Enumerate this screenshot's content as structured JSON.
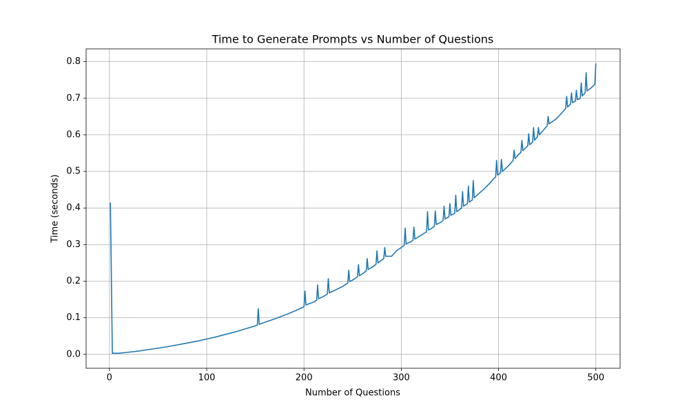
{
  "chart_data": {
    "type": "line",
    "title": "Time to Generate Prompts vs Number of Questions",
    "x_label": "Number of Questions",
    "y_label": "Time (seconds)",
    "grid": true,
    "xlim": [
      -23.95,
      524.95
    ],
    "ylim": [
      -0.038,
      0.835
    ],
    "xticks": [
      0,
      100,
      200,
      300,
      400,
      500
    ],
    "yticks": [
      {
        "value": 0,
        "label": "0.0"
      },
      0.1,
      0.2,
      0.3,
      0.4,
      0.5,
      0.6,
      0.7,
      0.8
    ],
    "x": [
      1,
      3,
      10,
      20,
      30,
      40,
      50,
      60,
      70,
      80,
      90,
      100,
      110,
      120,
      130,
      140,
      150,
      152,
      153,
      154,
      160,
      170,
      180,
      190,
      200,
      201,
      202,
      210,
      213,
      214,
      215,
      220,
      224,
      225,
      226,
      230,
      240,
      245,
      246,
      247,
      250,
      255,
      256,
      257,
      260,
      264,
      265,
      266,
      270,
      274,
      275,
      276,
      280,
      282,
      283,
      284,
      290,
      295,
      300,
      303,
      304,
      305,
      310,
      312,
      313,
      314,
      320,
      326,
      327,
      328,
      330,
      334,
      335,
      336,
      340,
      343,
      344,
      345,
      349,
      350,
      351,
      355,
      356,
      357,
      360,
      362,
      363,
      364,
      368,
      369,
      370,
      373,
      374,
      375,
      380,
      385,
      390,
      395,
      397,
      398,
      399,
      402,
      403,
      404,
      410,
      415,
      416,
      417,
      420,
      423,
      424,
      425,
      430,
      431,
      432,
      435,
      436,
      437,
      440,
      441,
      442,
      450,
      451,
      452,
      460,
      465,
      469,
      470,
      471,
      474,
      475,
      476,
      479,
      480,
      481,
      484,
      485,
      486,
      489,
      490,
      491,
      495,
      499,
      500
    ],
    "series": [
      {
        "name": "Time",
        "color": "#1f77b4",
        "values": [
          0.415,
          0.003,
          0.003,
          0.006,
          0.009,
          0.013,
          0.017,
          0.021,
          0.026,
          0.031,
          0.036,
          0.042,
          0.048,
          0.055,
          0.062,
          0.07,
          0.078,
          0.08,
          0.125,
          0.082,
          0.088,
          0.097,
          0.107,
          0.118,
          0.13,
          0.173,
          0.135,
          0.143,
          0.148,
          0.19,
          0.152,
          0.158,
          0.165,
          0.207,
          0.168,
          0.173,
          0.186,
          0.195,
          0.23,
          0.199,
          0.203,
          0.212,
          0.245,
          0.215,
          0.22,
          0.228,
          0.262,
          0.232,
          0.238,
          0.246,
          0.283,
          0.25,
          0.258,
          0.262,
          0.292,
          0.268,
          0.268,
          0.283,
          0.292,
          0.298,
          0.345,
          0.302,
          0.308,
          0.312,
          0.348,
          0.315,
          0.325,
          0.335,
          0.39,
          0.34,
          0.342,
          0.35,
          0.392,
          0.355,
          0.36,
          0.366,
          0.405,
          0.37,
          0.376,
          0.412,
          0.38,
          0.386,
          0.435,
          0.39,
          0.396,
          0.4,
          0.445,
          0.405,
          0.412,
          0.46,
          0.416,
          0.422,
          0.475,
          0.428,
          0.44,
          0.452,
          0.465,
          0.48,
          0.485,
          0.53,
          0.49,
          0.496,
          0.533,
          0.5,
          0.515,
          0.53,
          0.558,
          0.535,
          0.545,
          0.552,
          0.585,
          0.557,
          0.57,
          0.603,
          0.573,
          0.58,
          0.62,
          0.585,
          0.595,
          0.62,
          0.6,
          0.625,
          0.65,
          0.63,
          0.645,
          0.66,
          0.672,
          0.705,
          0.676,
          0.684,
          0.715,
          0.688,
          0.692,
          0.722,
          0.696,
          0.7,
          0.742,
          0.706,
          0.715,
          0.77,
          0.72,
          0.728,
          0.738,
          0.795
        ]
      }
    ]
  }
}
